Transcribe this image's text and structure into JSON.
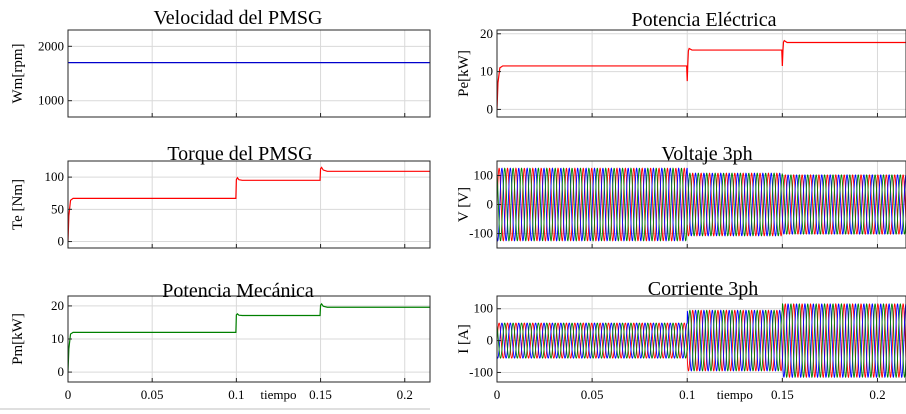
{
  "chart_data": [
    {
      "id": "wm",
      "type": "line",
      "title": "Velocidad del PMSG",
      "ylabel": "Wm[rpm]",
      "xlabel": "",
      "xlim": [
        0,
        0.215
      ],
      "ylim": [
        700,
        2300
      ],
      "yticks": [
        1000,
        2000
      ],
      "ytick_labels": [
        "1000",
        "2000"
      ],
      "xticks": [
        0.05,
        0.1,
        0.15,
        0.2
      ],
      "xtick_labels": [],
      "grid": true,
      "series": [
        {
          "color": "#0000cc",
          "x": [
            0,
            0.215
          ],
          "y": [
            1700,
            1700
          ]
        }
      ]
    },
    {
      "id": "te",
      "type": "line",
      "title": "Torque del PMSG",
      "ylabel": "Te [Nm]",
      "xlabel": "",
      "xlim": [
        0,
        0.215
      ],
      "ylim": [
        -10,
        125
      ],
      "yticks": [
        0,
        50,
        100
      ],
      "ytick_labels": [
        "0",
        "50",
        "100"
      ],
      "xticks": [
        0.05,
        0.1,
        0.15,
        0.2
      ],
      "xtick_labels": [],
      "grid": true,
      "series": [
        {
          "color": "#ff0000",
          "x": [
            0,
            0.0005,
            0.0015,
            0.003,
            0.0997,
            0.1,
            0.1006,
            0.1015,
            0.1035,
            0.1497,
            0.15,
            0.1506,
            0.1516,
            0.154,
            0.215
          ],
          "y": [
            0,
            40,
            64,
            67,
            67,
            96,
            99,
            96,
            95,
            95,
            113,
            115,
            111,
            109,
            109
          ]
        }
      ]
    },
    {
      "id": "pm",
      "type": "line",
      "title": "Potencia Mecánica",
      "ylabel": "Pm[kW]",
      "xlabel": "tiempo",
      "xlim": [
        0,
        0.215
      ],
      "ylim": [
        -3,
        23
      ],
      "yticks": [
        0,
        10,
        20
      ],
      "ytick_labels": [
        "0",
        "10",
        "20"
      ],
      "xticks": [
        0,
        0.05,
        0.1,
        0.15,
        0.2
      ],
      "xtick_labels": [
        "0",
        "0.05",
        "0.1",
        "0.15",
        "0.2"
      ],
      "grid": true,
      "series": [
        {
          "color": "#008000",
          "x": [
            0,
            0.0005,
            0.0015,
            0.003,
            0.0997,
            0.1,
            0.1006,
            0.1015,
            0.1035,
            0.1497,
            0.15,
            0.1506,
            0.1516,
            0.154,
            0.215
          ],
          "y": [
            0,
            7,
            11.5,
            12,
            12,
            17.3,
            17.6,
            17.2,
            17.1,
            17.1,
            20.2,
            20.6,
            19.9,
            19.6,
            19.6
          ]
        }
      ]
    },
    {
      "id": "pe",
      "type": "line",
      "title": "Potencia Eléctrica",
      "ylabel": "Pe[kW]",
      "xlabel": "",
      "xlim": [
        0,
        0.215
      ],
      "ylim": [
        -2,
        21
      ],
      "yticks": [
        0,
        10,
        20
      ],
      "ytick_labels": [
        "0",
        "10",
        "20"
      ],
      "xticks": [
        0.05,
        0.1,
        0.15,
        0.2
      ],
      "xtick_labels": [],
      "grid": true,
      "series": [
        {
          "color": "#ff0000",
          "x": [
            0,
            0.0005,
            0.0015,
            0.003,
            0.0997,
            0.1,
            0.1003,
            0.1006,
            0.101,
            0.1025,
            0.1497,
            0.15,
            0.1503,
            0.1506,
            0.151,
            0.1525,
            0.215
          ],
          "y": [
            0,
            7,
            11,
            11.5,
            11.5,
            7.5,
            12,
            15.5,
            16.1,
            15.7,
            15.7,
            11.5,
            15.5,
            17.8,
            18.2,
            17.7,
            17.7
          ]
        }
      ]
    },
    {
      "id": "v3",
      "type": "line",
      "title": "Voltaje 3ph",
      "ylabel": "V [V]",
      "xlabel": "",
      "xlim": [
        0,
        0.215
      ],
      "ylim": [
        -150,
        150
      ],
      "yticks": [
        -100,
        0,
        100
      ],
      "ytick_labels": [
        "-100",
        "0",
        "100"
      ],
      "xticks": [
        0.05,
        0.1,
        0.15,
        0.2
      ],
      "xtick_labels": [],
      "grid": true,
      "waveform": {
        "frequency_hz": 226,
        "amplitude_segments": [
          [
            0,
            0.1,
            125
          ],
          [
            0.1,
            0.15,
            108
          ],
          [
            0.15,
            0.215,
            102
          ]
        ],
        "phase_colors": [
          "#ff0000",
          "#0000ff",
          "#008000"
        ]
      }
    },
    {
      "id": "i3",
      "type": "line",
      "title": "Corriente 3ph",
      "ylabel": "I [A]",
      "xlabel": "tiempo",
      "xlim": [
        0,
        0.215
      ],
      "ylim": [
        -130,
        140
      ],
      "yticks": [
        -100,
        0,
        100
      ],
      "ytick_labels": [
        "-100",
        "0",
        "100"
      ],
      "xticks": [
        0,
        0.05,
        0.1,
        0.15,
        0.2
      ],
      "xtick_labels": [
        "0",
        "0.05",
        "0.1",
        "0.15",
        "0.2"
      ],
      "grid": true,
      "waveform": {
        "frequency_hz": 226,
        "amplitude_segments": [
          [
            0,
            0.1,
            55
          ],
          [
            0.1,
            0.15,
            95
          ],
          [
            0.15,
            0.215,
            115
          ]
        ],
        "phase_colors": [
          "#ff0000",
          "#0000ff",
          "#008000"
        ]
      }
    }
  ]
}
